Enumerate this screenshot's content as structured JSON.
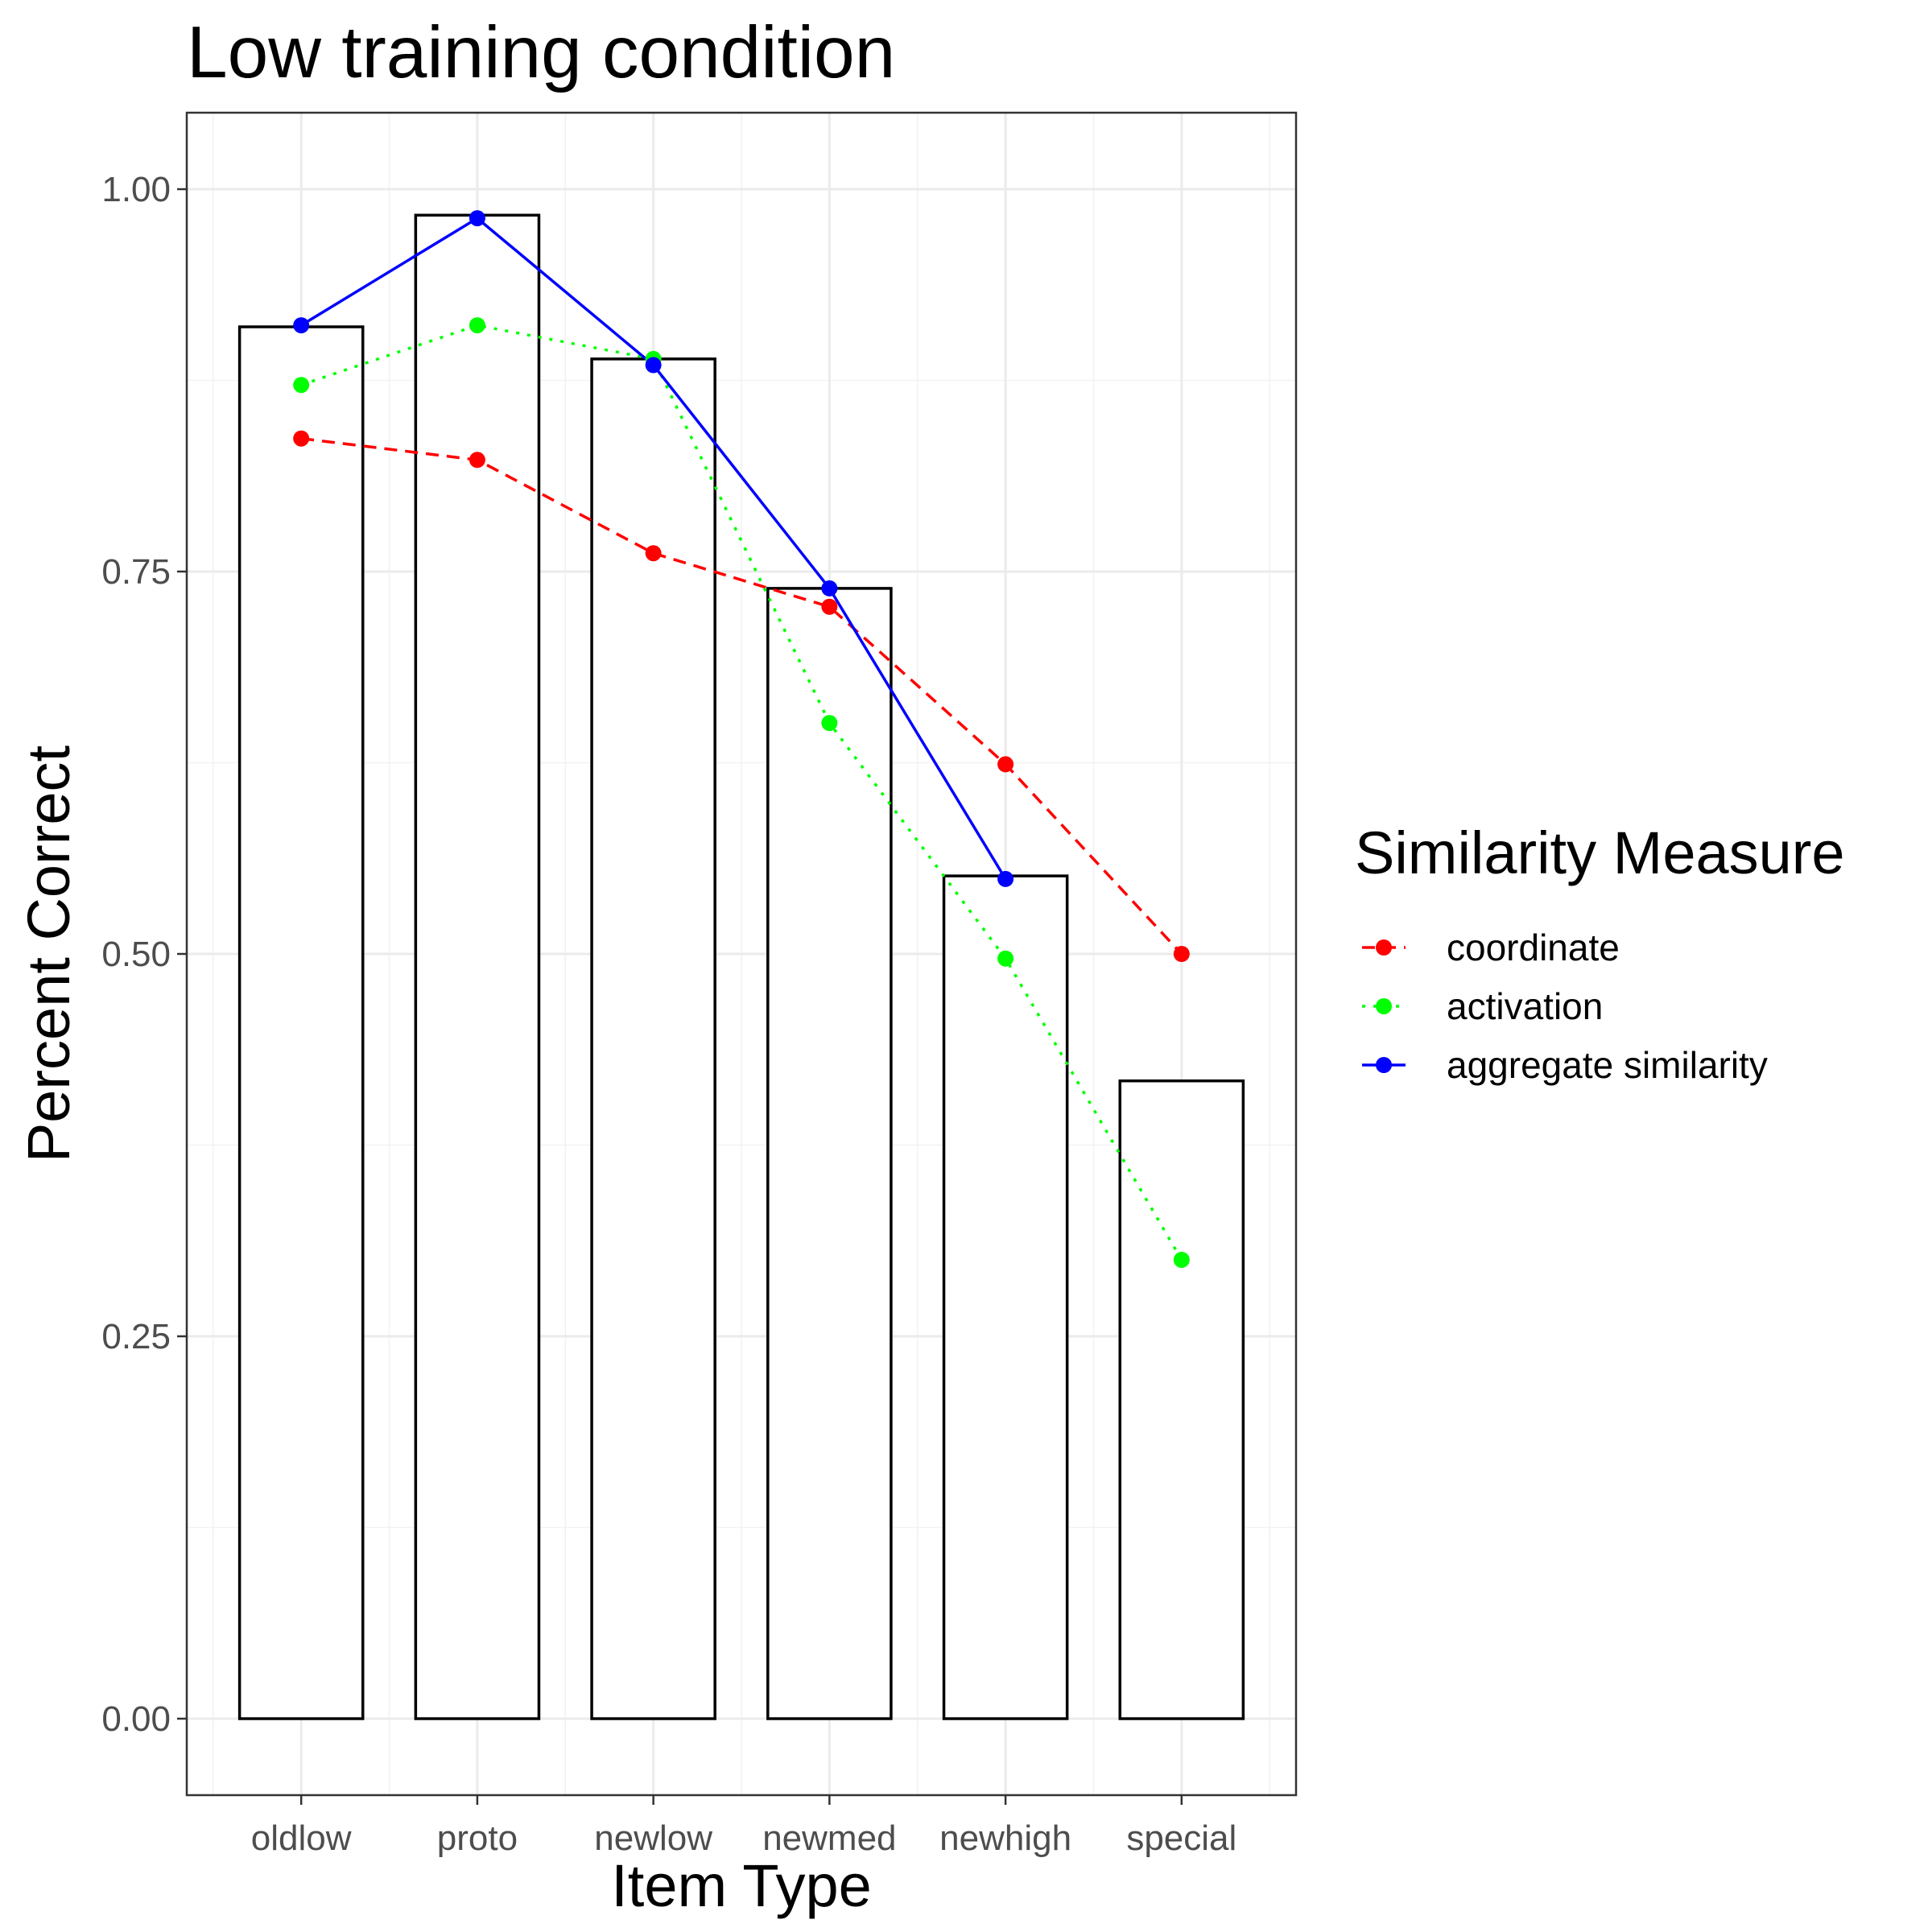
{
  "chart_data": {
    "type": "bar",
    "title": "Low training condition",
    "xlabel": "Item Type",
    "ylabel": "Percent Correct",
    "categories": [
      "oldlow",
      "proto",
      "newlow",
      "newmed",
      "newhigh",
      "special"
    ],
    "bar_values": [
      0.91,
      0.983,
      0.889,
      0.739,
      0.551,
      0.417
    ],
    "ylim": [
      -0.05,
      1.05
    ],
    "yticks": [
      0,
      0.25,
      0.5,
      0.75,
      1
    ],
    "ytick_labels": [
      "0.00",
      "0.25",
      "0.50",
      "0.75",
      "1.00"
    ],
    "grid": true,
    "legend": {
      "title": "Similarity Measure",
      "position": "right"
    },
    "series": [
      {
        "name": "coordinate",
        "color": "#ff0000",
        "line": "dashed",
        "values": [
          0.837,
          0.823,
          0.762,
          0.727,
          0.624,
          0.5
        ]
      },
      {
        "name": "activation",
        "color": "#00ff00",
        "line": "dotted",
        "values": [
          0.872,
          0.911,
          0.889,
          0.651,
          0.497,
          0.3
        ]
      },
      {
        "name": "aggregate similarity",
        "color": "#0000ff",
        "line": "solid",
        "values": [
          0.911,
          0.981,
          0.885,
          0.739,
          0.549,
          null
        ]
      }
    ]
  }
}
